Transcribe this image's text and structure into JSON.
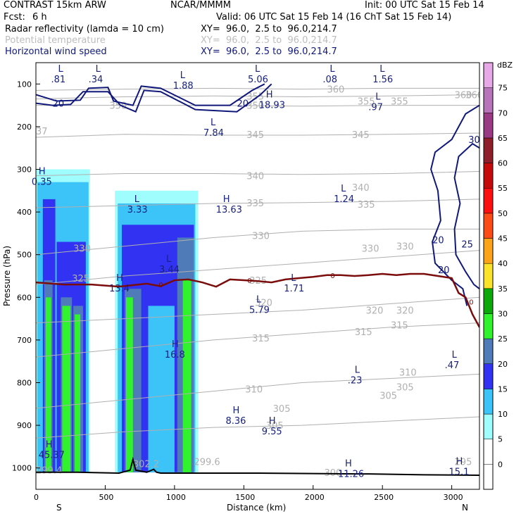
{
  "header": {
    "model": "CONTRAST 15km ARW",
    "org": "NCAR/MMMM",
    "init": "Init: 00 UTC Sat 15 Feb 14",
    "fcst_label": "Fcst:",
    "fcst_value": "6 h",
    "valid": "Valid: 06 UTC Sat 15 Feb 14 (16 ChT Sat 15 Feb 14)",
    "field1_name": "Radar reflectivity (lamda = 10 cm)",
    "field1_xy": "XY=  96.0,  2.5 to  96.0,214.7",
    "field2_name": "Potential temperature",
    "field2_xy": "XY=  96.0,  2.5 to  96.0,214.7",
    "field3_name": "Horizontal wind speed",
    "field3_xy": "XY=  96.0,  2.5 to  96.0,214.7"
  },
  "colors": {
    "theta": "#b0b0b0",
    "wind": "#10197a",
    "freezing": "#7a0c0c",
    "terrain": "#000000"
  },
  "chart_data": {
    "type": "heatmap",
    "title": "",
    "xlabel": "Distance (km)",
    "ylabel": "Pressure (hPa)",
    "xlim": [
      0,
      3200
    ],
    "ylim": [
      1050,
      50
    ],
    "x_ticks": [
      "0",
      "500",
      "1000",
      "1500",
      "2000",
      "2500",
      "3000"
    ],
    "y_ticks": [
      "100",
      "200",
      "300",
      "400",
      "500",
      "600",
      "700",
      "800",
      "900",
      "1000"
    ],
    "x_end_labels": {
      "left": "S",
      "right": "N"
    },
    "colorbar": {
      "unit": "dBZ",
      "levels": [
        "0",
        "5",
        "10",
        "15",
        "20",
        "25",
        "30",
        "35",
        "40",
        "45",
        "50",
        "55",
        "60",
        "65",
        "70",
        "75"
      ],
      "colors": [
        "#ffffff",
        "#9ffdfd",
        "#3cc3f8",
        "#3233f2",
        "#4f7cb9",
        "#30f22d",
        "#0aa80a",
        "#fbe32b",
        "#fba419",
        "#fb4b17",
        "#fb0f10",
        "#c50a0a",
        "#8e1f2a",
        "#9a3a85",
        "#b874ba",
        "#e6a8e6"
      ]
    },
    "reflectivity": [
      {
        "x": [
          0,
          390
        ],
        "p_top": 300,
        "p_bottom": 1010,
        "dbz": 5
      },
      {
        "x": [
          10,
          380
        ],
        "p_top": 330,
        "p_bottom": 1010,
        "dbz": 10
      },
      {
        "x": [
          50,
          140
        ],
        "p_top": 370,
        "p_bottom": 1010,
        "dbz": 15
      },
      {
        "x": [
          60,
          120
        ],
        "p_top": 560,
        "p_bottom": 1010,
        "dbz": 20
      },
      {
        "x": [
          70,
          110
        ],
        "p_top": 600,
        "p_bottom": 1010,
        "dbz": 25
      },
      {
        "x": [
          150,
          360
        ],
        "p_top": 470,
        "p_bottom": 1010,
        "dbz": 15
      },
      {
        "x": [
          180,
          260
        ],
        "p_top": 600,
        "p_bottom": 1010,
        "dbz": 20
      },
      {
        "x": [
          190,
          250
        ],
        "p_top": 620,
        "p_bottom": 1010,
        "dbz": 25
      },
      {
        "x": [
          270,
          340
        ],
        "p_top": 620,
        "p_bottom": 1010,
        "dbz": 20
      },
      {
        "x": [
          280,
          320
        ],
        "p_top": 640,
        "p_bottom": 1010,
        "dbz": 25
      },
      {
        "x": [
          570,
          1170
        ],
        "p_top": 350,
        "p_bottom": 1010,
        "dbz": 5
      },
      {
        "x": [
          590,
          1150
        ],
        "p_top": 380,
        "p_bottom": 1010,
        "dbz": 10
      },
      {
        "x": [
          620,
          1140
        ],
        "p_top": 430,
        "p_bottom": 1010,
        "dbz": 15
      },
      {
        "x": [
          640,
          760
        ],
        "p_top": 580,
        "p_bottom": 1010,
        "dbz": 20
      },
      {
        "x": [
          650,
          700
        ],
        "p_top": 600,
        "p_bottom": 1010,
        "dbz": 25
      },
      {
        "x": [
          1020,
          1140
        ],
        "p_top": 460,
        "p_bottom": 1010,
        "dbz": 20
      },
      {
        "x": [
          1060,
          1120
        ],
        "p_top": 560,
        "p_bottom": 1010,
        "dbz": 25
      },
      {
        "x": [
          810,
          1000
        ],
        "p_top": 620,
        "p_bottom": 1010,
        "dbz": 10
      }
    ],
    "theta_contours": [
      {
        "label": "305",
        "p": [
          930,
          915,
          905,
          900,
          890,
          880
        ]
      },
      {
        "label": "310",
        "p": [
          860,
          840,
          820,
          800,
          790,
          780
        ]
      },
      {
        "label": "315",
        "p": [
          740,
          720,
          700,
          685,
          670,
          660
        ]
      },
      {
        "label": "320",
        "p": [
          660,
          650,
          640,
          630,
          615,
          600
        ]
      },
      {
        "label": "325",
        "p": [
          570,
          550,
          535,
          520,
          505,
          490
        ]
      },
      {
        "label": "330",
        "p": [
          500,
          480,
          460,
          445,
          440,
          440
        ]
      },
      {
        "label": "335",
        "p": [
          390,
          385,
          380,
          378,
          375,
          370
        ]
      },
      {
        "label": "340",
        "p": [
          315,
          310,
          310,
          312,
          310,
          305
        ]
      },
      {
        "label": "345",
        "p": [
          225,
          218,
          220,
          220,
          218,
          215
        ]
      },
      {
        "label": "350",
        "p": [
          150,
          150,
          150,
          152,
          150,
          150
        ]
      },
      {
        "label": "355",
        "p": [
          135,
          130,
          128,
          130,
          128,
          125
        ]
      },
      {
        "label": "360",
        "p": [
          115,
          112,
          110,
          112,
          110,
          110
        ]
      }
    ],
    "theta_x": [
      0,
      640,
      1280,
      1920,
      2560,
      3200
    ],
    "theta_labels": [
      {
        "text": "330",
        "x": 270,
        "p": 485
      },
      {
        "text": "325",
        "x": 260,
        "p": 555
      },
      {
        "text": "330",
        "x": 1560,
        "p": 455
      },
      {
        "text": "330",
        "x": 2350,
        "p": 485
      },
      {
        "text": "330",
        "x": 2600,
        "p": 480
      },
      {
        "text": "335",
        "x": 1520,
        "p": 378
      },
      {
        "text": "335",
        "x": 2320,
        "p": 382
      },
      {
        "text": "340",
        "x": 1520,
        "p": 315
      },
      {
        "text": "340",
        "x": 2280,
        "p": 342
      },
      {
        "text": "345",
        "x": 1520,
        "p": 218
      },
      {
        "text": "345",
        "x": 2280,
        "p": 218
      },
      {
        "text": "350",
        "x": 530,
        "p": 150
      },
      {
        "text": "350",
        "x": 1520,
        "p": 150
      },
      {
        "text": "355",
        "x": 1520,
        "p": 128
      },
      {
        "text": "355",
        "x": 2320,
        "p": 140
      },
      {
        "text": "355",
        "x": 2560,
        "p": 140
      },
      {
        "text": "360",
        "x": 2100,
        "p": 112
      },
      {
        "text": "360",
        "x": 3100,
        "p": 125
      },
      {
        "text": "325",
        "x": 1540,
        "p": 560
      },
      {
        "text": "320",
        "x": 1580,
        "p": 612
      },
      {
        "text": "320",
        "x": 2380,
        "p": 630
      },
      {
        "text": "320",
        "x": 2600,
        "p": 630
      },
      {
        "text": "315",
        "x": 1560,
        "p": 695
      },
      {
        "text": "315",
        "x": 2300,
        "p": 680
      },
      {
        "text": "315",
        "x": 2560,
        "p": 665
      },
      {
        "text": "310",
        "x": 1510,
        "p": 815
      },
      {
        "text": "310",
        "x": 2620,
        "p": 775
      },
      {
        "text": "305",
        "x": 1660,
        "p": 900
      },
      {
        "text": "305",
        "x": 1710,
        "p": 860
      },
      {
        "text": "305",
        "x": 2600,
        "p": 810
      },
      {
        "text": "305",
        "x": 2480,
        "p": 830
      },
      {
        "text": "295",
        "x": 3020,
        "p": 985
      },
      {
        "text": "300",
        "x": 2080,
        "p": 1010
      },
      {
        "text": "299.6",
        "x": 1140,
        "p": 985
      },
      {
        "text": "299.4",
        "x": 0,
        "p": 1005
      },
      {
        "text": "302.2",
        "x": 700,
        "p": 990
      },
      {
        "text": "37",
        "x": 0,
        "p": 210
      },
      {
        "text": "360",
        "x": 3020,
        "p": 125
      }
    ],
    "wind_labels": [
      {
        "text": "20",
        "x": 120,
        "p": 145
      },
      {
        "text": "20",
        "x": 1450,
        "p": 145
      },
      {
        "text": "20",
        "x": 2860,
        "p": 465
      },
      {
        "text": "20",
        "x": 2900,
        "p": 535
      },
      {
        "text": "25",
        "x": 3070,
        "p": 475
      },
      {
        "text": "30",
        "x": 3120,
        "p": 230
      }
    ],
    "freezing_level": {
      "label": "0",
      "x": [
        0,
        200,
        400,
        600,
        800,
        900,
        1000,
        1100,
        1200,
        1300,
        1400,
        1500,
        1600,
        1700,
        1800,
        1900,
        2000,
        2100,
        2200,
        2300,
        2400,
        2500,
        2600,
        2700,
        2800,
        2900,
        3000,
        3050,
        3100,
        3150,
        3200
      ],
      "p": [
        565,
        570,
        570,
        575,
        568,
        574,
        560,
        558,
        565,
        575,
        558,
        560,
        562,
        565,
        558,
        555,
        552,
        548,
        548,
        550,
        548,
        545,
        548,
        545,
        545,
        550,
        555,
        590,
        600,
        640,
        670
      ],
      "marks": [
        {
          "x": 900,
          "p": 570
        },
        {
          "x": 1540,
          "p": 560
        },
        {
          "x": 2140,
          "p": 548
        },
        {
          "x": 3140,
          "p": 610
        }
      ]
    },
    "terrain": {
      "x": [
        0,
        300,
        600,
        680,
        700,
        720,
        800,
        850,
        870,
        900,
        1200,
        1600,
        2000,
        2400,
        2800,
        3200
      ],
      "p": [
        1010,
        1010,
        1012,
        1005,
        980,
        1005,
        1010,
        1003,
        1010,
        1012,
        1012,
        1012,
        1013,
        1014,
        1016,
        1017
      ]
    },
    "highs_lows": [
      {
        "type": "L",
        "value": ".81",
        "x": 180,
        "p": 75
      },
      {
        "type": "L",
        "value": ".34",
        "x": 450,
        "p": 75
      },
      {
        "type": "L",
        "value": "1.88",
        "x": 1060,
        "p": 90
      },
      {
        "type": "L",
        "value": "5.06",
        "x": 1600,
        "p": 75
      },
      {
        "type": "L",
        "value": ".08",
        "x": 2140,
        "p": 75
      },
      {
        "type": "L",
        "value": "1.56",
        "x": 2500,
        "p": 75
      },
      {
        "type": "H",
        "value": "18.93",
        "x": 1680,
        "p": 135
      },
      {
        "type": "L",
        "value": ".97",
        "x": 2470,
        "p": 140
      },
      {
        "type": "L",
        "value": "7.84",
        "x": 1280,
        "p": 200
      },
      {
        "type": "H",
        "value": "0.35",
        "x": 40,
        "p": 315
      },
      {
        "type": "L",
        "value": "3.33",
        "x": 730,
        "p": 380
      },
      {
        "type": "H",
        "value": "13.63",
        "x": 1370,
        "p": 380
      },
      {
        "type": "L",
        "value": "1.24",
        "x": 2220,
        "p": 355
      },
      {
        "type": "L",
        "value": "3.44",
        "x": 960,
        "p": 520
      },
      {
        "type": "H",
        "value": "13.4",
        "x": 600,
        "p": 565
      },
      {
        "type": "L",
        "value": "1.71",
        "x": 1860,
        "p": 565
      },
      {
        "type": "L",
        "value": "5.79",
        "x": 1610,
        "p": 615
      },
      {
        "type": "H",
        "value": "16.8",
        "x": 1000,
        "p": 720
      },
      {
        "type": "L",
        "value": ".47",
        "x": 3020,
        "p": 745
      },
      {
        "type": "L",
        "value": ".23",
        "x": 2320,
        "p": 780
      },
      {
        "type": "H",
        "value": "8.36",
        "x": 1440,
        "p": 875
      },
      {
        "type": "H",
        "value": "9.55",
        "x": 1700,
        "p": 900
      },
      {
        "type": "H",
        "value": "45.37",
        "x": 90,
        "p": 955
      },
      {
        "type": "H",
        "value": "11.26",
        "x": 2250,
        "p": 1000
      },
      {
        "type": "H",
        "value": "15.1",
        "x": 3050,
        "p": 995
      }
    ]
  }
}
